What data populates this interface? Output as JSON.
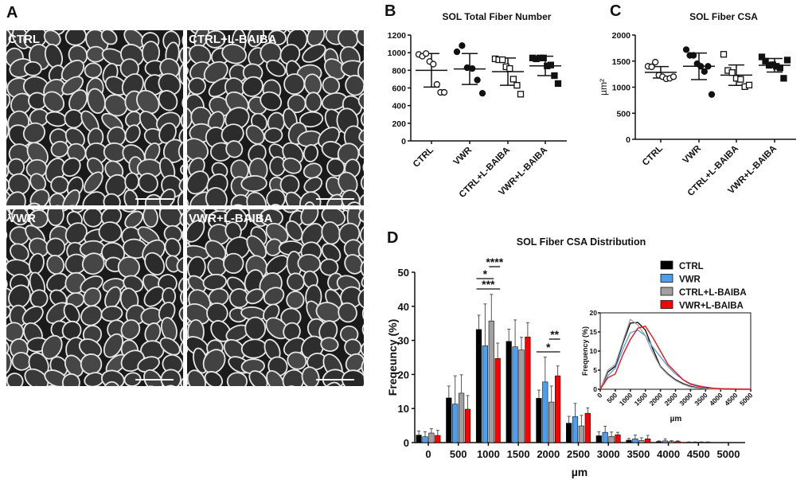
{
  "panel_a": {
    "label": "A",
    "images": [
      {
        "label": "CTRL"
      },
      {
        "label": "CTRL+L-BAIBA"
      },
      {
        "label": "VWR"
      },
      {
        "label": "VWR+L-BAIBA"
      }
    ]
  },
  "chart_data": [
    {
      "panel": "B",
      "type": "scatter",
      "title": "SOL Total Fiber Number",
      "ylabel": "",
      "ylim": [
        0,
        1200
      ],
      "yticks": [
        0,
        200,
        400,
        600,
        800,
        1000,
        1200
      ],
      "categories": [
        "CTRL",
        "VWR",
        "CTRL+L-BAIBA",
        "VWR+L-BAIBA"
      ],
      "markers": [
        "open-circle",
        "filled-circle",
        "open-square",
        "filled-square"
      ],
      "points": [
        [
          980,
          960,
          990,
          900,
          870,
          640,
          550,
          550
        ],
        [
          1010,
          1080,
          830,
          820,
          690,
          540
        ],
        [
          930,
          920,
          920,
          840,
          820,
          700,
          630,
          530
        ],
        [
          940,
          930,
          940,
          940,
          850,
          860,
          740,
          650
        ]
      ],
      "mean": [
        800,
        815,
        785,
        850
      ],
      "sd": [
        190,
        175,
        155,
        110
      ]
    },
    {
      "panel": "C",
      "type": "scatter",
      "title": "SOL Fiber CSA",
      "ylabel": "µm²",
      "ylim": [
        0,
        2000
      ],
      "yticks": [
        0,
        500,
        1000,
        1500,
        2000
      ],
      "categories": [
        "CTRL",
        "VWR",
        "CTRL+L-BAIBA",
        "VWR+L-BAIBA"
      ],
      "markers": [
        "open-circle",
        "filled-circle",
        "open-square",
        "filled-square"
      ],
      "points": [
        [
          1400,
          1390,
          1480,
          1230,
          1200,
          1160,
          1170,
          1200
        ],
        [
          1720,
          1610,
          1610,
          1450,
          1400,
          1300,
          1400,
          860
        ],
        [
          1630,
          1320,
          1280,
          1170,
          1150,
          1010,
          1040
        ],
        [
          1580,
          1500,
          1420,
          1430,
          1400,
          1370,
          1170,
          1520
        ]
      ],
      "mean": [
        1285,
        1400,
        1230,
        1420
      ],
      "sd": [
        110,
        255,
        195,
        130
      ]
    },
    {
      "panel": "D",
      "type": "bar",
      "title": "SOL Fiber CSA Distribution",
      "xlabel": "µm",
      "ylabel": "Freqeuncy (%)",
      "ylim": [
        0,
        50
      ],
      "yticks": [
        0,
        10,
        20,
        30,
        40,
        50
      ],
      "categories": [
        "0",
        "500",
        "1000",
        "1500",
        "2000",
        "2500",
        "3000",
        "3500",
        "4000",
        "4500",
        "5000"
      ],
      "legend_position": "top-right",
      "series": [
        {
          "name": "CTRL",
          "color": "#000000",
          "values": [
            2.2,
            13.1,
            33.2,
            29.7,
            13.0,
            5.7,
            2.0,
            0.7,
            0.3,
            0.1,
            0
          ],
          "upper": [
            3.4,
            16.6,
            37.4,
            33.3,
            15.4,
            7.7,
            3.2,
            1.2,
            0.5,
            0.2,
            0
          ]
        },
        {
          "name": "VWR",
          "color": "#4a9ff0",
          "values": [
            1.7,
            11.3,
            28.4,
            28.1,
            17.8,
            7.6,
            3.0,
            1.1,
            0.5,
            0.1,
            0
          ],
          "upper": [
            3.2,
            19.6,
            40.7,
            36.0,
            25.1,
            11.5,
            4.8,
            2.2,
            1.1,
            0.2,
            0
          ]
        },
        {
          "name": "CTRL+L-BAIBA",
          "color": "#a0a0a0",
          "values": [
            2.8,
            14.5,
            35.7,
            27.2,
            11.9,
            4.9,
            1.8,
            0.6,
            0.3,
            0.1,
            0
          ],
          "upper": [
            4.1,
            19.9,
            43.5,
            30.9,
            16.6,
            8.0,
            3.1,
            1.4,
            0.6,
            0.2,
            0
          ]
        },
        {
          "name": "VWR+L-BAIBA",
          "color": "#ff0000",
          "values": [
            2.1,
            9.8,
            24.7,
            31.0,
            19.6,
            8.6,
            2.3,
            1.1,
            0.3,
            0.1,
            0
          ],
          "upper": [
            3.6,
            13.8,
            29.2,
            35.2,
            22.5,
            10.2,
            3.0,
            2.1,
            0.5,
            0.2,
            0
          ]
        }
      ],
      "significance": [
        {
          "category": "1000",
          "from": "CTRL+L-BAIBA",
          "to": "VWR+L-BAIBA",
          "label": "****"
        },
        {
          "category": "1000",
          "from": "CTRL",
          "to": "CTRL+L-BAIBA",
          "label": "*"
        },
        {
          "category": "1000",
          "from": "CTRL",
          "to": "VWR+L-BAIBA",
          "label": "***"
        },
        {
          "category": "2000",
          "from": "CTRL+L-BAIBA",
          "to": "VWR+L-BAIBA",
          "label": "**"
        },
        {
          "category": "2000",
          "from": "CTRL",
          "to": "VWR+L-BAIBA",
          "label": "*"
        }
      ],
      "inset": {
        "type": "line",
        "xlabel": "µm",
        "ylabel": "Frequency (%)",
        "xlim": [
          0,
          5000
        ],
        "ylim": [
          0,
          20
        ],
        "xticks": [
          0,
          500,
          1000,
          1500,
          2000,
          2500,
          3000,
          3500,
          4000,
          4500,
          5000
        ],
        "yticks": [
          0,
          5,
          10,
          15,
          20
        ],
        "x": [
          0,
          250,
          500,
          750,
          1000,
          1250,
          1500,
          1750,
          2000,
          2250,
          2500,
          2750,
          3000,
          3250,
          3500,
          3750,
          4000,
          4500,
          5000
        ],
        "series": [
          {
            "name": "CTRL",
            "color": "#000000",
            "values": [
              0,
              4.5,
              6,
              12,
              17.3,
              17.5,
              15.5,
              10.5,
              6,
              4,
              2.5,
              1.5,
              0.8,
              0.4,
              0.2,
              0.1,
              0.05,
              0,
              0
            ]
          },
          {
            "name": "VWR",
            "color": "#4a9ff0",
            "values": [
              0,
              3.5,
              5.5,
              10.5,
              14.8,
              15.5,
              14,
              11,
              8.5,
              6,
              4,
              2.5,
              1.5,
              1,
              0.6,
              0.3,
              0.2,
              0.1,
              0
            ]
          },
          {
            "name": "CTRL+L-BAIBA",
            "color": "#a0a0a0",
            "values": [
              0,
              5,
              6.5,
              12.5,
              18.3,
              16.8,
              14,
              9.5,
              5.8,
              3.8,
              2.3,
              1.3,
              0.6,
              0.3,
              0.1,
              0.05,
              0,
              0,
              0
            ]
          },
          {
            "name": "VWR+L-BAIBA",
            "color": "#ff0000",
            "values": [
              0,
              3,
              4,
              9,
              13,
              16,
              16.5,
              13.5,
              10,
              6.5,
              4.5,
              2.5,
              1.3,
              0.8,
              0.5,
              0.3,
              0.1,
              0.05,
              0
            ]
          }
        ]
      }
    }
  ]
}
